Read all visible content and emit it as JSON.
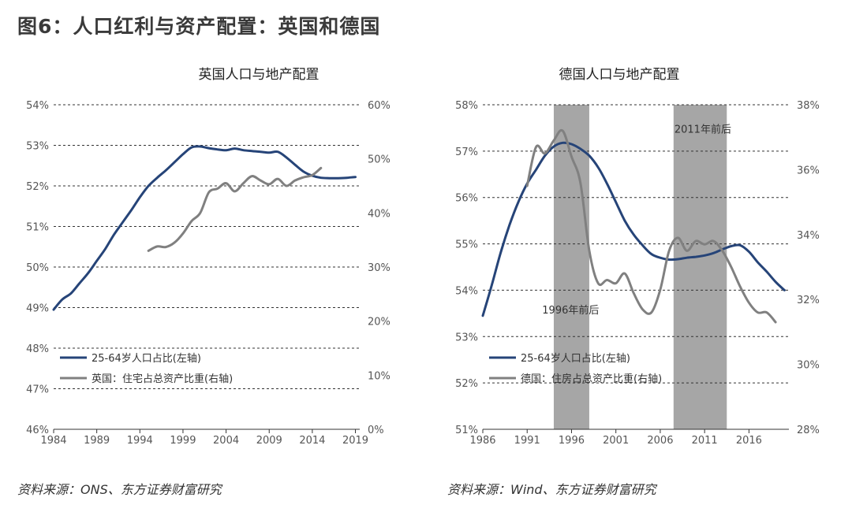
{
  "figure_title": "图6：人口红利与资产配置：英国和德国",
  "colors": {
    "primary": "#264478",
    "secondary": "#808080",
    "shade": "#a6a6a6"
  },
  "sources": [
    "资料来源：ONS、东方证券财富研究",
    "资料来源：Wind、东方证券财富研究"
  ],
  "chart_data": [
    {
      "type": "line",
      "title": "英国人口与地产配置",
      "grid": true,
      "legend_position": "bottom-left",
      "x_ticks": [
        "1984",
        "1989",
        "1994",
        "1999",
        "2004",
        "2009",
        "2014",
        "2019"
      ],
      "xlim": [
        1984,
        2019.5
      ],
      "y_left_ticks": [
        "46%",
        "47%",
        "48%",
        "49%",
        "50%",
        "51%",
        "52%",
        "53%",
        "54%"
      ],
      "y_left_lim": [
        46,
        54
      ],
      "y_right_ticks": [
        "0%",
        "10%",
        "20%",
        "30%",
        "40%",
        "50%",
        "60%"
      ],
      "y_right_lim": [
        0,
        60
      ],
      "series": [
        {
          "name": "25-64岁人口占比(左轴)",
          "axis": "left",
          "x": [
            1984,
            1985,
            1986,
            1987,
            1988,
            1989,
            1990,
            1991,
            1992,
            1993,
            1994,
            1995,
            1996,
            1997,
            1998,
            1999,
            2000,
            2001,
            2002,
            2003,
            2004,
            2005,
            2006,
            2007,
            2008,
            2009,
            2010,
            2011,
            2012,
            2013,
            2014,
            2015,
            2016,
            2017,
            2018,
            2019
          ],
          "y": [
            48.95,
            49.2,
            49.35,
            49.6,
            49.85,
            50.15,
            50.45,
            50.8,
            51.1,
            51.4,
            51.72,
            52.0,
            52.2,
            52.38,
            52.58,
            52.78,
            52.95,
            52.97,
            52.93,
            52.9,
            52.88,
            52.92,
            52.88,
            52.86,
            52.84,
            52.82,
            52.84,
            52.7,
            52.52,
            52.35,
            52.25,
            52.2,
            52.19,
            52.19,
            52.2,
            52.22
          ]
        },
        {
          "name": "英国：住宅占总资产比重(右轴)",
          "axis": "right",
          "x": [
            1995,
            1996,
            1997,
            1998,
            1999,
            2000,
            2001,
            2002,
            2003,
            2004,
            2005,
            2006,
            2007,
            2008,
            2009,
            2010,
            2011,
            2012,
            2013,
            2014,
            2015
          ],
          "y": [
            33.0,
            33.8,
            33.7,
            34.5,
            36.2,
            38.5,
            40.0,
            43.8,
            44.5,
            45.5,
            44.0,
            45.5,
            46.8,
            46.0,
            45.3,
            46.3,
            45.0,
            46.0,
            46.6,
            47.0,
            48.3
          ]
        }
      ]
    },
    {
      "type": "line",
      "title": "德国人口与地产配置",
      "grid": true,
      "legend_position": "bottom-left",
      "x_ticks": [
        "1986",
        "1991",
        "1996",
        "2001",
        "2006",
        "2011",
        "2016"
      ],
      "xlim": [
        1986,
        2020.5
      ],
      "y_left_ticks": [
        "51%",
        "52%",
        "53%",
        "54%",
        "55%",
        "56%",
        "57%",
        "58%"
      ],
      "y_left_lim": [
        51,
        58
      ],
      "y_right_ticks": [
        "28%",
        "30%",
        "32%",
        "34%",
        "36%",
        "38%"
      ],
      "y_right_lim": [
        28,
        38
      ],
      "shaded_periods": [
        [
          1994,
          1998
        ],
        [
          2007.5,
          2013.5
        ]
      ],
      "annotations": [
        {
          "text": "1996年前后",
          "x": 1995.9,
          "y": 53.5
        },
        {
          "text": "2011年前后",
          "x": 2010.8,
          "y": 57.4
        }
      ],
      "series": [
        {
          "name": "25-64岁人口占比(左轴)",
          "axis": "left",
          "x": [
            1986,
            1987,
            1988,
            1989,
            1990,
            1991,
            1992,
            1993,
            1994,
            1995,
            1996,
            1997,
            1998,
            1999,
            2000,
            2001,
            2002,
            2003,
            2004,
            2005,
            2006,
            2007,
            2008,
            2009,
            2010,
            2011,
            2012,
            2013,
            2014,
            2015,
            2016,
            2017,
            2018,
            2019,
            2020
          ],
          "y": [
            53.45,
            54.1,
            54.8,
            55.4,
            55.9,
            56.3,
            56.6,
            56.9,
            57.1,
            57.18,
            57.15,
            57.05,
            56.9,
            56.65,
            56.3,
            55.9,
            55.5,
            55.2,
            54.97,
            54.78,
            54.7,
            54.66,
            54.67,
            54.7,
            54.72,
            54.75,
            54.8,
            54.88,
            54.95,
            54.97,
            54.83,
            54.6,
            54.4,
            54.18,
            54.0
          ]
        },
        {
          "name": "德国：住房占总资产比重(右轴)",
          "axis": "right",
          "x": [
            1991,
            1992,
            1993,
            1994,
            1995,
            1996,
            1997,
            1998,
            1999,
            2000,
            2001,
            2002,
            2003,
            2004,
            2005,
            2006,
            2007,
            2008,
            2009,
            2010,
            2011,
            2012,
            2013,
            2014,
            2015,
            2016,
            2017,
            2018,
            2019
          ],
          "y": [
            35.5,
            36.7,
            36.5,
            36.9,
            37.2,
            36.4,
            35.6,
            33.5,
            32.5,
            32.6,
            32.5,
            32.8,
            32.2,
            31.7,
            31.6,
            32.3,
            33.5,
            33.9,
            33.5,
            33.8,
            33.7,
            33.8,
            33.5,
            33.0,
            32.4,
            31.9,
            31.6,
            31.6,
            31.3
          ]
        }
      ]
    }
  ]
}
